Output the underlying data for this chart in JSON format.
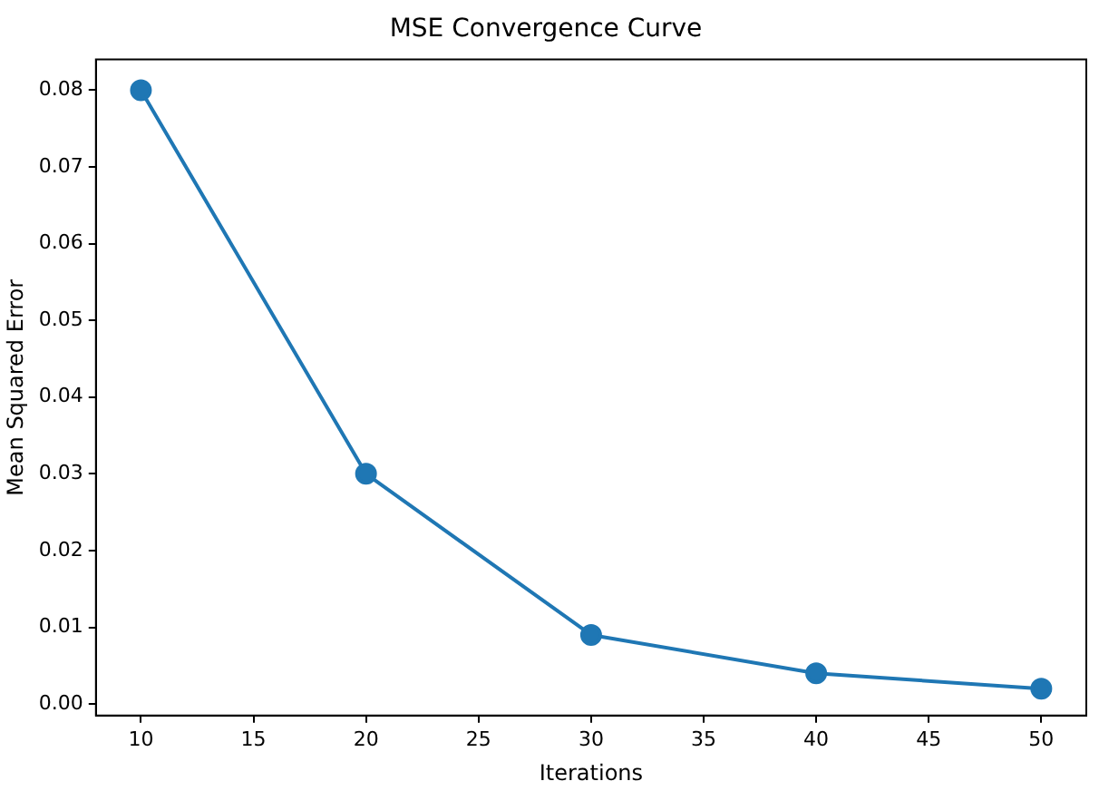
{
  "chart_data": {
    "type": "line",
    "title": "MSE Convergence Curve",
    "xlabel": "Iterations",
    "ylabel": "Mean Squared Error",
    "x": [
      10,
      20,
      30,
      40,
      50
    ],
    "series": [
      {
        "color": "#1f77b4",
        "values": [
          0.08,
          0.03,
          0.009,
          0.004,
          0.002
        ]
      }
    ],
    "xlim": [
      8,
      52
    ],
    "xticks": [
      10,
      15,
      20,
      25,
      30,
      35,
      40,
      45,
      50
    ],
    "ylim": [
      -0.0015,
      0.084
    ],
    "yticks": [
      {
        "value": 0,
        "label": "0.00"
      },
      {
        "value": 0.01,
        "label": "0.01"
      },
      {
        "value": 0.02,
        "label": "0.02"
      },
      {
        "value": 0.03,
        "label": "0.03"
      },
      {
        "value": 0.04,
        "label": "0.04"
      },
      {
        "value": 0.05,
        "label": "0.05"
      },
      {
        "value": 0.06,
        "label": "0.06"
      },
      {
        "value": 0.07,
        "label": "0.07"
      },
      {
        "value": 0.08,
        "label": "0.08"
      }
    ],
    "grid": false,
    "legend": false,
    "marker": "circle",
    "line_style": "solid"
  }
}
